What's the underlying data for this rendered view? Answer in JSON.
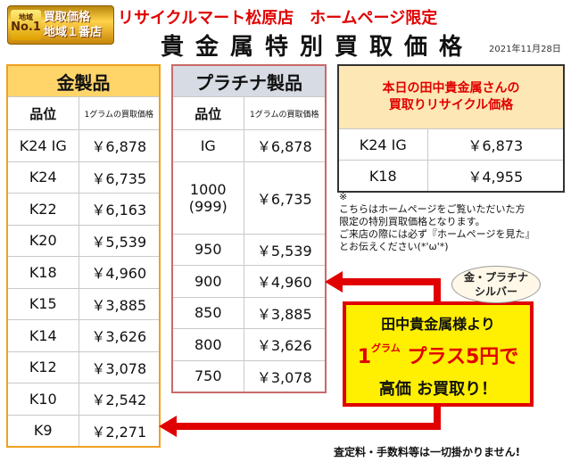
{
  "header": {
    "badge_top": "地域",
    "badge_no": "No.1",
    "badge_line1": "買取価格",
    "badge_line2": "地域１番店",
    "title": "リサイクルマート松原店　ホームページ限定",
    "main_title": "貴金属特別買取価格",
    "date": "2021年11月28日"
  },
  "gold": {
    "title": "金製品",
    "col_grade": "品位",
    "col_price": "1グラムの買取価格",
    "rows": [
      {
        "grade": "K24 IG",
        "price": "￥6,878"
      },
      {
        "grade": "K24",
        "price": "￥6,735"
      },
      {
        "grade": "K22",
        "price": "￥6,163"
      },
      {
        "grade": "K20",
        "price": "￥5,539"
      },
      {
        "grade": "K18",
        "price": "￥4,960"
      },
      {
        "grade": "K15",
        "price": "￥3,885"
      },
      {
        "grade": "K14",
        "price": "￥3,626"
      },
      {
        "grade": "K12",
        "price": "￥3,078"
      },
      {
        "grade": "K10",
        "price": "￥2,542"
      },
      {
        "grade": "K9",
        "price": "￥2,271"
      }
    ]
  },
  "platinum": {
    "title": "プラチナ製品",
    "col_grade": "品位",
    "col_price": "1グラムの買取価格",
    "rows": [
      {
        "grade": "IG",
        "price": "￥6,878"
      },
      {
        "grade": "1000\n(999)",
        "price": "￥6,735"
      },
      {
        "grade": "950",
        "price": "￥5,539"
      },
      {
        "grade": "900",
        "price": "￥4,960"
      },
      {
        "grade": "850",
        "price": "￥3,885"
      },
      {
        "grade": "800",
        "price": "￥3,626"
      },
      {
        "grade": "750",
        "price": "￥3,078"
      }
    ]
  },
  "today": {
    "title_line1": "本日の田中貴金属さんの",
    "title_line2": "買取りリサイクル価格",
    "rows": [
      {
        "grade": "K24 IG",
        "price": "￥6,873"
      },
      {
        "grade": "K18",
        "price": "￥4,955"
      }
    ]
  },
  "note": {
    "mark": "※",
    "line1": "こちらはホームページをご覧いただいた方",
    "line2": "限定の特別買取価格となります。",
    "line3": "ご来店の際には必ず『ホームページを見た』",
    "line4": "とお伝えください(*'ω'*)"
  },
  "promo": {
    "bubble_line1": "金・プラチナ",
    "bubble_line2": "シルバー",
    "line1": "田中貴金属様より",
    "line2_prefix": "1",
    "line2_unit": "グラム",
    "line2_rest": " プラス5円で",
    "line3": "高価 お買取り！"
  },
  "footer": "査定料・手数料等は一切掛かりません!",
  "colors": {
    "accent_red": "#e00000",
    "promo_yellow": "#ffef00",
    "gold_header": "#ffd56a",
    "platinum_header": "#d6dbe4"
  }
}
